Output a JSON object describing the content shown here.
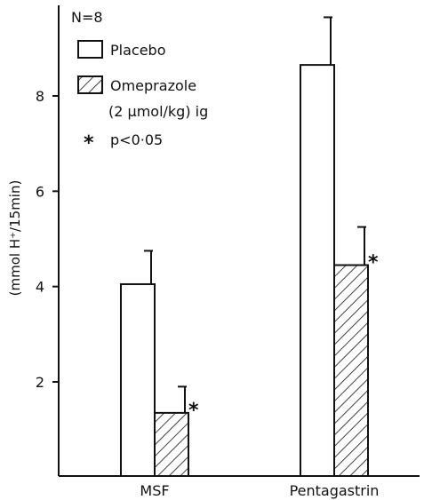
{
  "chart_data": {
    "type": "bar",
    "categories": [
      "MSF",
      "Pentagastrin"
    ],
    "series": [
      {
        "name": "Placebo",
        "values": [
          4.05,
          8.65
        ],
        "errors": [
          0.7,
          1.0
        ],
        "significant": [
          false,
          false
        ]
      },
      {
        "name": "Omeprazole",
        "values": [
          1.35,
          4.45
        ],
        "errors": [
          0.55,
          0.8
        ],
        "significant": [
          true,
          true
        ]
      }
    ],
    "ylabel": "(mmol H⁺/15min)",
    "yticks": [
      2,
      4,
      6,
      8
    ],
    "ylim": [
      0,
      9.8
    ],
    "fill": {
      "Placebo": "#ffffff",
      "Omeprazole": "hatch"
    },
    "significance_marker": "*",
    "legend": {
      "position": "top-left",
      "n_label": "N=8",
      "placebo_label": "Placebo",
      "omeprazole_label": "Omeprazole",
      "omeprazole_sub": "(2 μmol/kg) ig",
      "p_marker": "*",
      "p_label": "p<0·05"
    }
  }
}
